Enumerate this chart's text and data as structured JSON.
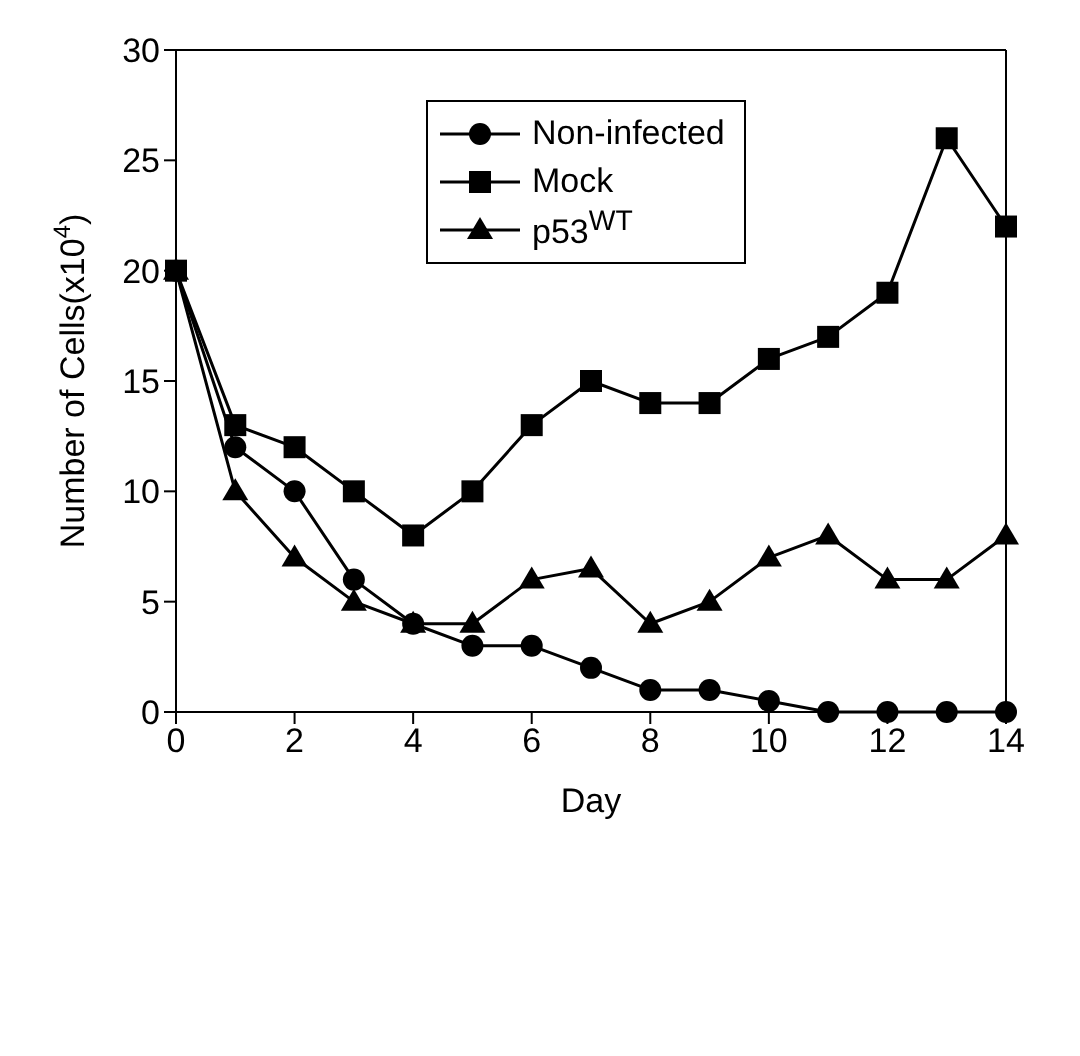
{
  "chart_data": {
    "type": "line",
    "xlabel": "Day",
    "ylabel": "Number of Cells(x10$^{4}$)",
    "x": [
      0,
      1,
      2,
      3,
      4,
      5,
      6,
      7,
      8,
      9,
      10,
      11,
      12,
      13,
      14
    ],
    "xlim": [
      0,
      14
    ],
    "xticks": [
      0,
      2,
      4,
      6,
      8,
      10,
      12,
      14
    ],
    "ylim": [
      0,
      30
    ],
    "yticks": [
      0,
      5,
      10,
      15,
      20,
      25,
      30
    ],
    "grid": false,
    "legend": "top",
    "line_style": "solid",
    "series": [
      {
        "name": "Non-infected",
        "color": "#000000",
        "marker": "circle",
        "values": [
          20,
          12,
          10,
          6,
          4,
          3,
          3,
          2,
          1,
          1,
          0.5,
          0,
          0,
          0,
          0
        ]
      },
      {
        "name": "Mock",
        "color": "#000000",
        "marker": "square",
        "values": [
          20,
          13,
          12,
          10,
          8,
          10,
          13,
          15,
          14,
          14,
          16,
          17,
          19,
          26,
          22
        ]
      },
      {
        "name": "p53$^{WT}$",
        "color": "#000000",
        "marker": "triangle",
        "values": [
          20,
          10,
          7,
          5,
          4,
          4,
          6,
          6.5,
          4,
          5,
          7,
          8,
          6,
          6,
          8
        ]
      }
    ]
  }
}
